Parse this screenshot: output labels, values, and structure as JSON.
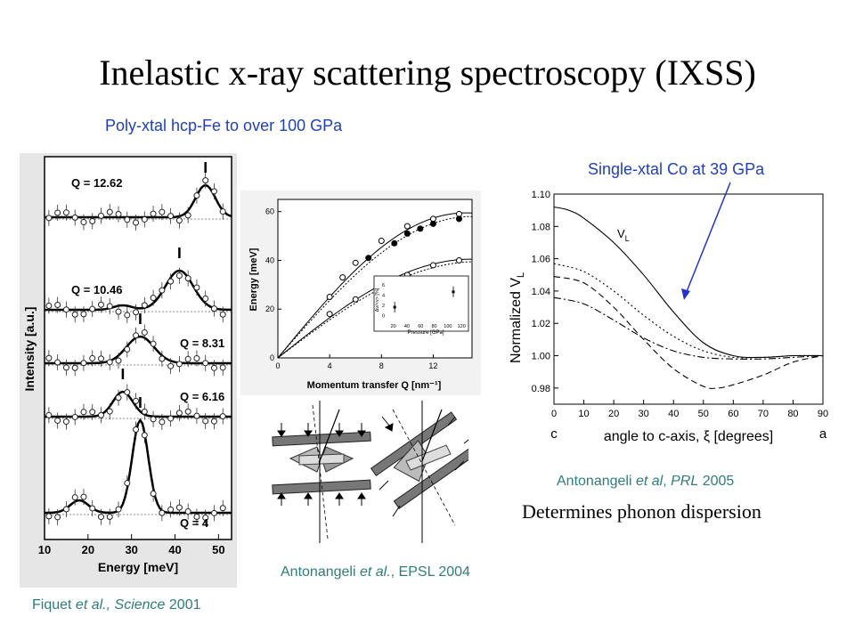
{
  "title": "Inelastic x-ray scattering spectroscopy (IXSS)",
  "subtitle_polyxtal": "Poly-xtal hcp-Fe to over 100 GPa",
  "note_singlextal": "Single-xtal Co at 39 GPa",
  "determines": "Determines phonon dispersion",
  "cite_fiquet": {
    "author": "Fiquet",
    "etal": "et al.,",
    "journal": "Science",
    "year": "2001"
  },
  "cite_epsl": {
    "author": "Antonangeli",
    "etal": "et al.",
    "rest": ", EPSL 2004"
  },
  "cite_prl": {
    "author": "Antonangeli",
    "etal": "et al",
    "sep": ",",
    "journal": "PRL",
    "year": "2005"
  },
  "colors": {
    "blue_text": "#1f3fbf",
    "teal_text": "#2e7d7d",
    "arrow": "#2233cc"
  },
  "chart_data": [
    {
      "type": "line",
      "panel": "IXS spectra",
      "xlabel": "Energy [meV]",
      "ylabel": "Intensity [a.u.]",
      "xticks": [
        "10",
        "20",
        "30",
        "40",
        "50"
      ],
      "xlim": [
        10,
        53
      ],
      "series": [
        {
          "name": "Q = 12.62",
          "peak_x": 47
        },
        {
          "name": "Q = 10.46",
          "peak_x": 41
        },
        {
          "name": "Q = 8.31",
          "peak_x": 32
        },
        {
          "name": "Q = 6.16",
          "peak_x": 28
        },
        {
          "name": "Q = 4",
          "peak_x": 32
        }
      ]
    },
    {
      "type": "scatter",
      "panel": "Dispersion",
      "xlabel": "Momentum transfer Q [nm⁻¹]",
      "ylabel": "Energy [meV]",
      "xticks": [
        "0",
        "4",
        "8",
        "12"
      ],
      "yticks": [
        "0",
        "20",
        "40",
        "60"
      ],
      "xlim": [
        0,
        15
      ],
      "ylim": [
        0,
        65
      ],
      "series": [
        {
          "name": "upper open",
          "x": [
            4,
            5,
            6,
            8,
            10,
            12,
            14
          ],
          "y": [
            25,
            33,
            39,
            48,
            54,
            57,
            59
          ]
        },
        {
          "name": "upper filled",
          "x": [
            7,
            9,
            10,
            11,
            12,
            14
          ],
          "y": [
            41,
            47,
            51,
            53,
            55,
            57
          ]
        },
        {
          "name": "lower",
          "x": [
            4,
            6,
            8,
            10,
            12,
            14
          ],
          "y": [
            18,
            24,
            30,
            34,
            38,
            40
          ]
        }
      ],
      "inset": {
        "xlabel": "Pressure [GPa]",
        "ylabel": "Δv/<v> [%]",
        "xticks": [
          "20",
          "40",
          "60",
          "80",
          "100",
          "120"
        ],
        "yticks": [
          "0",
          "2",
          "4",
          "6"
        ],
        "xlim": [
          10,
          125
        ],
        "ylim": [
          -1,
          7
        ],
        "x": [
          22,
          108
        ],
        "y": [
          1.6,
          4.6
        ]
      }
    },
    {
      "type": "line",
      "panel": "Normalized VL",
      "xlabel": "angle to c-axis, ξ [degrees]",
      "ylabel": "Normalized V",
      "ylabel_sub": "L",
      "curve_label": "V",
      "curve_label_sub": "L",
      "x_end_labels": [
        "c",
        "a"
      ],
      "xticks": [
        "0",
        "10",
        "20",
        "30",
        "40",
        "50",
        "60",
        "70",
        "80",
        "90"
      ],
      "yticks": [
        "0.98",
        "1.00",
        "1.02",
        "1.04",
        "1.06",
        "1.08",
        "1.10"
      ],
      "xlim": [
        0,
        90
      ],
      "ylim": [
        0.97,
        1.1
      ],
      "series": [
        {
          "name": "solid",
          "x": [
            0,
            5,
            10,
            20,
            30,
            40,
            50,
            60,
            70,
            80,
            90
          ],
          "y": [
            1.092,
            1.09,
            1.085,
            1.07,
            1.05,
            1.027,
            1.008,
            1.0,
            0.999,
            1.0,
            1.0
          ]
        },
        {
          "name": "dotted",
          "x": [
            0,
            10,
            20,
            30,
            40,
            50,
            60,
            70,
            80,
            90
          ],
          "y": [
            1.057,
            1.052,
            1.04,
            1.025,
            1.012,
            1.003,
            0.999,
            0.999,
            1.0,
            1.0
          ]
        },
        {
          "name": "dashed",
          "x": [
            0,
            10,
            20,
            30,
            40,
            50,
            55,
            60,
            70,
            80,
            90
          ],
          "y": [
            1.049,
            1.045,
            1.03,
            1.01,
            0.992,
            0.981,
            0.98,
            0.982,
            0.988,
            0.996,
            1.0
          ]
        },
        {
          "name": "dash-dot",
          "x": [
            0,
            10,
            20,
            30,
            40,
            50,
            60,
            70,
            80,
            90
          ],
          "y": [
            1.036,
            1.032,
            1.022,
            1.011,
            1.003,
            0.999,
            0.998,
            0.998,
            0.999,
            1.0
          ]
        }
      ]
    }
  ]
}
